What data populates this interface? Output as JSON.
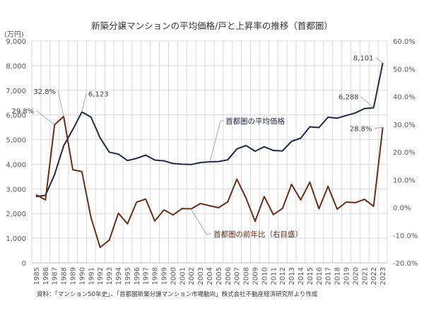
{
  "chart_data": {
    "type": "line",
    "title": "新築分譲マンションの平均価格/戸と上昇率の推移（首都圏）",
    "y_unit_label": "(万円)",
    "source": "資料：「マンション50年史」、「首都圏新築分譲マンション市場動向」株式会社不動産経済研究所より作成",
    "categories": [
      "1985",
      "1986",
      "1987",
      "1988",
      "1989",
      "1990",
      "1991",
      "1992",
      "1993",
      "1994",
      "1995",
      "1996",
      "1997",
      "1998",
      "1999",
      "2000",
      "2001",
      "2002",
      "2003",
      "2004",
      "2005",
      "2006",
      "2007",
      "2008",
      "2009",
      "2010",
      "2011",
      "2012",
      "2013",
      "2014",
      "2015",
      "2016",
      "2017",
      "2018",
      "2019",
      "2020",
      "2021",
      "2022",
      "2023"
    ],
    "ylim_left": [
      0,
      9000
    ],
    "yticks_left": [
      "0",
      "1,000",
      "2,000",
      "3,000",
      "4,000",
      "5,000",
      "6,000",
      "7,000",
      "8,000",
      "9,000"
    ],
    "ylim_right": [
      -20,
      60
    ],
    "yticks_right": [
      "-20.0%",
      "-10.0%",
      "0.0%",
      "10.0%",
      "20.0%",
      "30.0%",
      "40.0%",
      "50.0%",
      "60.0%"
    ],
    "grid": true,
    "series": [
      {
        "name": "首都圏の平均価格",
        "axis": "left",
        "color": "#1f2a4a",
        "values": [
          2690,
          2740,
          3580,
          4750,
          5410,
          6123,
          5910,
          5070,
          4490,
          4410,
          4150,
          4240,
          4370,
          4170,
          4140,
          4030,
          4000,
          3990,
          4070,
          4100,
          4110,
          4180,
          4620,
          4760,
          4530,
          4710,
          4560,
          4540,
          4929,
          5060,
          5518,
          5490,
          5908,
          5871,
          5980,
          6083,
          6260,
          6288,
          8101
        ]
      },
      {
        "name": "首都圏の前年比（右目盛）",
        "axis": "right",
        "color": "#6b2e14",
        "values": [
          4.5,
          2.7,
          29.8,
          32.8,
          13.6,
          12.9,
          -3.7,
          -14.4,
          -11.8,
          -2.1,
          -5.9,
          1.9,
          3.0,
          -4.9,
          -0.9,
          -2.7,
          -0.4,
          -0.5,
          1.4,
          0.6,
          -0.1,
          2.0,
          10.2,
          3.4,
          -5.0,
          3.9,
          -2.6,
          -0.4,
          8.3,
          2.7,
          9.1,
          -0.5,
          7.6,
          -0.6,
          1.9,
          1.7,
          2.9,
          0.4,
          28.8
        ]
      }
    ],
    "annotations": [
      {
        "text": "29.8%",
        "series": 1,
        "category": "1987"
      },
      {
        "text": "32.8%",
        "series": 1,
        "category": "1988"
      },
      {
        "text": "6,123",
        "series": 0,
        "category": "1990"
      },
      {
        "text": "6,288",
        "series": 0,
        "category": "2022"
      },
      {
        "text": "8,101",
        "series": 0,
        "category": "2023"
      },
      {
        "text": "28.8%",
        "series": 1,
        "category": "2023"
      }
    ]
  }
}
